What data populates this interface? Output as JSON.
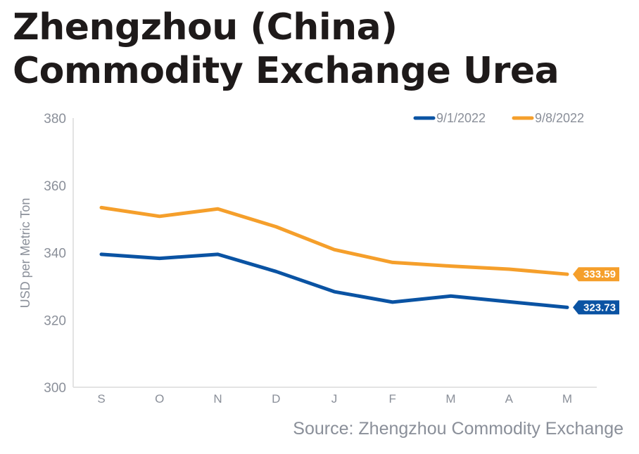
{
  "title": "Zhengzhou (China) Commodity Exchange Urea",
  "source": "Source: Zhengzhou Commodity Exchange",
  "chart_data": {
    "type": "line",
    "title": "Zhengzhou (China) Commodity Exchange Urea",
    "xlabel": "",
    "ylabel": "USD per Metric Ton",
    "categories": [
      "S",
      "O",
      "N",
      "D",
      "J",
      "F",
      "M",
      "A",
      "M"
    ],
    "ylim": [
      300,
      380
    ],
    "yticks": [
      300,
      320,
      340,
      360,
      380
    ],
    "grid": false,
    "legend": "top-right",
    "series": [
      {
        "name": "9/1/2022",
        "color": "#0a53a3",
        "values": [
          339.5,
          338.3,
          339.5,
          334.4,
          328.4,
          325.3,
          327.1,
          325.4,
          323.73
        ],
        "end_label": "323.73"
      },
      {
        "name": "9/8/2022",
        "color": "#f59f2b",
        "values": [
          353.4,
          350.8,
          353.0,
          347.7,
          340.9,
          337.1,
          336.0,
          335.1,
          333.59
        ],
        "end_label": "333.59"
      }
    ]
  }
}
